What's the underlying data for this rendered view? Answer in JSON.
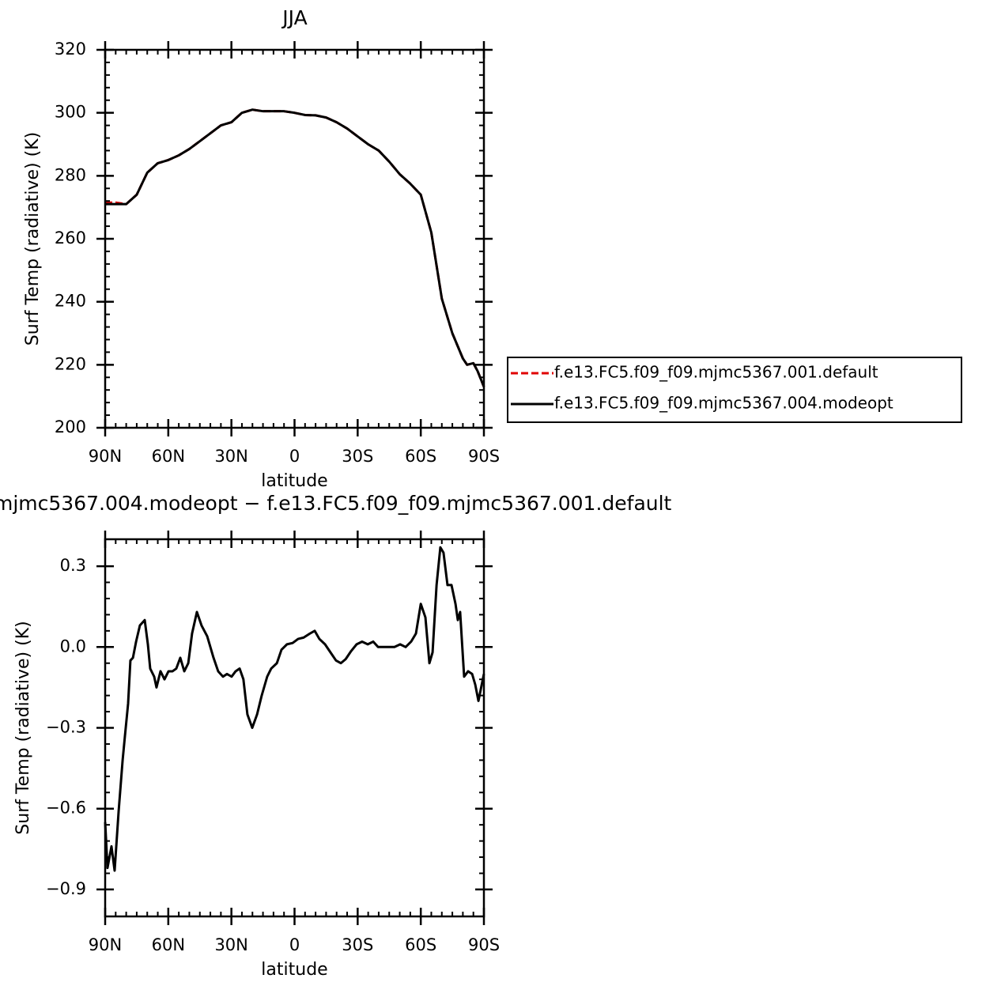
{
  "chart_data": [
    {
      "type": "line",
      "title": "JJA",
      "xlabel": "latitude",
      "ylabel": "Surf Temp (radiative) (K)",
      "x": [
        90,
        85,
        80,
        75,
        70,
        65,
        60,
        55,
        50,
        45,
        40,
        35,
        30,
        25,
        20,
        15,
        10,
        5,
        0,
        -5,
        -10,
        -15,
        -20,
        -25,
        -30,
        -35,
        -40,
        -45,
        -50,
        -55,
        -60,
        -65,
        -70,
        -75,
        -80,
        -82,
        -85,
        -87,
        -90
      ],
      "series": [
        {
          "name": "f.e13.FC5.f09_f09.mjmc5367.001.default",
          "color": "#e00000",
          "linestyle": "dashed",
          "values": [
            271.5,
            271.5,
            271,
            274,
            281,
            284,
            285,
            286.5,
            288.5,
            291,
            293.5,
            296,
            297,
            300,
            301,
            300.5,
            300.5,
            300.5,
            300,
            299.3,
            299.2,
            298.5,
            297,
            295,
            292.5,
            290,
            288,
            284.5,
            280.5,
            277.5,
            274,
            262,
            241,
            230,
            222,
            220,
            220.5,
            218,
            213
          ]
        },
        {
          "name": "f.e13.FC5.f09_f09.mjmc5367.004.modeopt",
          "color": "#000000",
          "linestyle": "solid",
          "values": [
            271,
            271,
            271,
            274,
            281,
            284,
            285,
            286.5,
            288.5,
            291,
            293.5,
            296,
            297,
            300,
            301,
            300.5,
            300.5,
            300.5,
            300,
            299.3,
            299.2,
            298.5,
            297,
            295,
            292.5,
            290,
            288,
            284.5,
            280.5,
            277.5,
            274,
            262,
            241,
            230,
            222,
            220,
            220.5,
            218,
            213
          ]
        }
      ],
      "xlim": [
        90,
        -90
      ],
      "xticks": [
        {
          "value": 90,
          "label": "90N"
        },
        {
          "value": 60,
          "label": "60N"
        },
        {
          "value": 30,
          "label": "30N"
        },
        0,
        {
          "value": -30,
          "label": "30S"
        },
        {
          "value": -60,
          "label": "60S"
        },
        {
          "value": -90,
          "label": "90S"
        }
      ],
      "ylim": [
        200,
        320
      ],
      "yticks": [
        200,
        220,
        240,
        260,
        280,
        300,
        320
      ]
    },
    {
      "type": "line",
      "title": "mjmc5367.004.modeopt − f.e13.FC5.f09_f09.mjmc5367.001.default",
      "xlabel": "latitude",
      "ylabel": "Surf Temp (radiative) (K)",
      "x": [
        90,
        88.9,
        87,
        85.5,
        83.6,
        81.7,
        80.6,
        79.1,
        78,
        76.8,
        75.3,
        73.5,
        71.2,
        69.7,
        68.6,
        66.7,
        65.6,
        63.7,
        61.8,
        59.9,
        58,
        56.2,
        54.3,
        52.4,
        50.5,
        48.7,
        46.4,
        44.2,
        41.5,
        38.5,
        36.3,
        34,
        32.1,
        29.9,
        28,
        26.1,
        24.3,
        22.4,
        20.1,
        17.8,
        15.6,
        13,
        11.1,
        8.4,
        6.2,
        3.6,
        0.9,
        -1.7,
        -4.3,
        -7.3,
        -9.6,
        -11.8,
        -14.5,
        -17.1,
        -19.7,
        -22,
        -24.3,
        -26.9,
        -29.5,
        -32.1,
        -34.8,
        -37.4,
        -39.7,
        -42.3,
        -44.9,
        -47.5,
        -50.2,
        -52.8,
        -55.4,
        -57.7,
        -60,
        -62.2,
        -64.1,
        -65.6,
        -67.5,
        -69.3,
        -70.8,
        -72.7,
        -74.6,
        -76.5,
        -77.6,
        -78.7,
        -80.6,
        -82.5,
        -84.4,
        -85.9,
        -87.4,
        -90
      ],
      "series": [
        {
          "color": "#000000",
          "linestyle": "solid",
          "values": [
            -0.65,
            -0.82,
            -0.74,
            -0.83,
            -0.61,
            -0.42,
            -0.33,
            -0.21,
            -0.05,
            -0.04,
            0.02,
            0.08,
            0.1,
            0.01,
            -0.08,
            -0.11,
            -0.15,
            -0.09,
            -0.12,
            -0.09,
            -0.09,
            -0.08,
            -0.04,
            -0.09,
            -0.06,
            0.05,
            0.13,
            0.08,
            0.04,
            -0.04,
            -0.09,
            -0.11,
            -0.1,
            -0.11,
            -0.09,
            -0.08,
            -0.12,
            -0.25,
            -0.3,
            -0.25,
            -0.18,
            -0.11,
            -0.08,
            -0.06,
            -0.01,
            0.01,
            0.015,
            0.03,
            0.035,
            0.05,
            0.06,
            0.03,
            0.01,
            -0.02,
            -0.05,
            -0.06,
            -0.045,
            -0.015,
            0.01,
            0.02,
            0.01,
            0.02,
            0,
            0,
            0,
            0,
            0.01,
            0,
            0.02,
            0.05,
            0.16,
            0.11,
            -0.06,
            -0.02,
            0.23,
            0.37,
            0.35,
            0.23,
            0.23,
            0.16,
            0.1,
            0.13,
            -0.11,
            -0.09,
            -0.1,
            -0.14,
            -0.2,
            -0.1
          ]
        }
      ],
      "xlim": [
        90,
        -90
      ],
      "xticks": [
        {
          "value": 90,
          "label": "90N"
        },
        {
          "value": 60,
          "label": "60N"
        },
        {
          "value": 30,
          "label": "30N"
        },
        0,
        {
          "value": -30,
          "label": "30S"
        },
        {
          "value": -60,
          "label": "60S"
        },
        {
          "value": -90,
          "label": "90S"
        }
      ],
      "ylim": [
        -1,
        0.4
      ],
      "yticks": [
        {
          "value": -0.9,
          "label": "−0.9"
        },
        {
          "value": -0.6,
          "label": "−0.6"
        },
        {
          "value": -0.3,
          "label": "−0.3"
        },
        {
          "value": 0,
          "label": "0.0"
        },
        0.3
      ]
    }
  ]
}
